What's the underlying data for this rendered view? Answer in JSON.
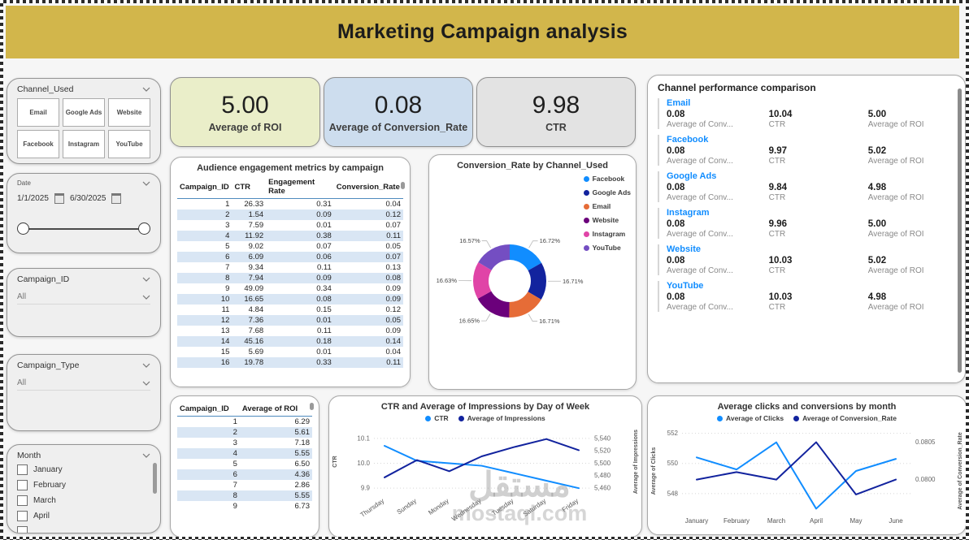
{
  "header": {
    "title": "Marketing Campaign analysis"
  },
  "sidebar": {
    "channel_filter": {
      "title": "Channel_Used",
      "options": [
        "Email",
        "Google Ads",
        "Website",
        "Facebook",
        "Instagram",
        "YouTube"
      ]
    },
    "date_filter": {
      "title": "Date",
      "start_date": "1/1/2025",
      "end_date": "6/30/2025"
    },
    "campaign_id_filter": {
      "title": "Campaign_ID",
      "value": "All"
    },
    "campaign_type_filter": {
      "title": "Campaign_Type",
      "value": "All"
    },
    "month_filter": {
      "title": "Month",
      "options": [
        "January",
        "February",
        "March",
        "April"
      ]
    }
  },
  "kpi_cards": [
    {
      "value": "5.00",
      "label": "Average of ROI",
      "bg": "#eaeec9"
    },
    {
      "value": "0.08",
      "label": "Average of Conversion_Rate",
      "bg": "#cdddee"
    },
    {
      "value": "9.98",
      "label": "CTR",
      "bg": "#e3e3e3"
    }
  ],
  "audience_table": {
    "title": "Audience engagement metrics by campaign",
    "columns": [
      "Campaign_ID",
      "CTR",
      "Engagement Rate",
      "Conversion_Rate"
    ],
    "rows": [
      [
        "1",
        "26.33",
        "0.31",
        "0.04"
      ],
      [
        "2",
        "1.54",
        "0.09",
        "0.12"
      ],
      [
        "3",
        "7.59",
        "0.01",
        "0.07"
      ],
      [
        "4",
        "11.92",
        "0.38",
        "0.11"
      ],
      [
        "5",
        "9.02",
        "0.07",
        "0.05"
      ],
      [
        "6",
        "6.09",
        "0.06",
        "0.07"
      ],
      [
        "7",
        "9.34",
        "0.11",
        "0.13"
      ],
      [
        "8",
        "7.94",
        "0.09",
        "0.08"
      ],
      [
        "9",
        "49.09",
        "0.34",
        "0.09"
      ],
      [
        "10",
        "16.65",
        "0.08",
        "0.09"
      ],
      [
        "11",
        "4.84",
        "0.15",
        "0.12"
      ],
      [
        "12",
        "7.36",
        "0.01",
        "0.05"
      ],
      [
        "13",
        "7.68",
        "0.11",
        "0.09"
      ],
      [
        "14",
        "45.16",
        "0.18",
        "0.14"
      ],
      [
        "15",
        "5.69",
        "0.01",
        "0.04"
      ],
      [
        "16",
        "19.78",
        "0.33",
        "0.11"
      ]
    ]
  },
  "roi_table": {
    "columns": [
      "Campaign_ID",
      "Average of ROI"
    ],
    "rows": [
      [
        "1",
        "6.29"
      ],
      [
        "2",
        "5.61"
      ],
      [
        "3",
        "7.18"
      ],
      [
        "4",
        "5.55"
      ],
      [
        "5",
        "6.50"
      ],
      [
        "6",
        "4.36"
      ],
      [
        "7",
        "2.86"
      ],
      [
        "8",
        "5.55"
      ],
      [
        "9",
        "6.73"
      ]
    ]
  },
  "channel_performance": {
    "title": "Channel performance comparison",
    "name_color": "#118DFF",
    "metric_labels": [
      "Average of Conv...",
      "CTR",
      "Average of ROI"
    ],
    "channels": [
      {
        "name": "Email",
        "conversion": "0.08",
        "ctr": "10.04",
        "roi": "5.00"
      },
      {
        "name": "Facebook",
        "conversion": "0.08",
        "ctr": "9.97",
        "roi": "5.02"
      },
      {
        "name": "Google Ads",
        "conversion": "0.08",
        "ctr": "9.84",
        "roi": "4.98"
      },
      {
        "name": "Instagram",
        "conversion": "0.08",
        "ctr": "9.96",
        "roi": "5.00"
      },
      {
        "name": "Website",
        "conversion": "0.08",
        "ctr": "10.03",
        "roi": "5.02"
      },
      {
        "name": "YouTube",
        "conversion": "0.08",
        "ctr": "10.03",
        "roi": "4.98"
      }
    ]
  },
  "watermark": {
    "arabic": "مستقل",
    "latin": "mostaql.com"
  },
  "chart_data": [
    {
      "type": "pie",
      "title": "Conversion_Rate by Channel_Used",
      "legend_position": "right-top",
      "donut": true,
      "label_format": "percent",
      "slices": [
        {
          "label": "Facebook",
          "value": 16.72,
          "color": "#118DFF"
        },
        {
          "label": "Google Ads",
          "value": 16.71,
          "color": "#12239E"
        },
        {
          "label": "Email",
          "value": 16.71,
          "color": "#E66C37"
        },
        {
          "label": "Website",
          "value": 16.65,
          "color": "#6B007B"
        },
        {
          "label": "Instagram",
          "value": 16.63,
          "color": "#E044A7"
        },
        {
          "label": "YouTube",
          "value": 16.57,
          "color": "#744EC2"
        }
      ]
    },
    {
      "type": "line",
      "title": "CTR and Average of Impressions by Day of Week",
      "categories": [
        "Thursday",
        "Sunday",
        "Monday",
        "Wednesday",
        "Tuesday",
        "Saturday",
        "Friday"
      ],
      "series": [
        {
          "name": "CTR",
          "axis": "left",
          "color": "#118DFF",
          "values": [
            10.07,
            10.01,
            10.0,
            9.99,
            9.96,
            9.93,
            9.9
          ]
        },
        {
          "name": "Average of Impressions",
          "axis": "right",
          "color": "#12239E",
          "values": [
            5477,
            5505,
            5487,
            5511,
            5526,
            5539,
            5521
          ]
        }
      ],
      "left_axis": {
        "label": "CTR",
        "min": 9.881,
        "max": 10.132,
        "tick_values": [
          9.9,
          10.0,
          10.1
        ],
        "tick_labels": [
          "9.9",
          "10.0",
          "10.1"
        ]
      },
      "right_axis": {
        "label": "Average of Impressions",
        "min": 5452,
        "max": 5553,
        "tick_values": [
          5460,
          5480,
          5500,
          5520,
          5540
        ],
        "tick_labels": [
          "5,460",
          "5,480",
          "5,500",
          "5,520",
          "5,540"
        ]
      },
      "x_label_rotation": -35,
      "grid": true
    },
    {
      "type": "line",
      "title": "Average clicks and conversions by month",
      "categories": [
        "January",
        "February",
        "March",
        "April",
        "May",
        "June"
      ],
      "series": [
        {
          "name": "Average of Clicks",
          "axis": "left",
          "color": "#118DFF",
          "values": [
            550.4,
            549.6,
            551.4,
            547.0,
            549.5,
            550.3
          ]
        },
        {
          "name": "Average of Conversion_Rate",
          "axis": "right",
          "color": "#12239E",
          "values": [
            0.08,
            0.0801,
            0.08,
            0.0805,
            0.0798,
            0.08
          ]
        }
      ],
      "left_axis": {
        "label": "Average of Clicks",
        "min": 546.7,
        "max": 552.3,
        "tick_values": [
          548,
          550,
          552
        ],
        "tick_labels": [
          "548",
          "550",
          "552"
        ]
      },
      "right_axis": {
        "label": "Average of Conversion_Rate",
        "min": 0.07955,
        "max": 0.08068,
        "tick_values": [
          0.08,
          0.0805
        ],
        "tick_labels": [
          "0.0800",
          "0.0805"
        ]
      },
      "x_label_rotation": 0,
      "grid": true
    }
  ]
}
